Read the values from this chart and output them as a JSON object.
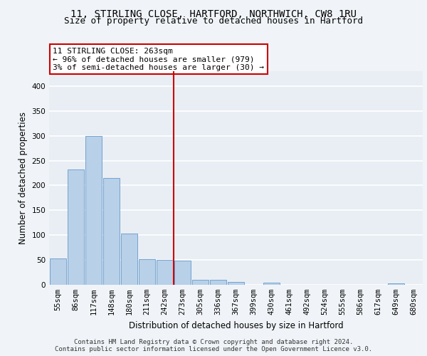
{
  "title_line1": "11, STIRLING CLOSE, HARTFORD, NORTHWICH, CW8 1RU",
  "title_line2": "Size of property relative to detached houses in Hartford",
  "xlabel": "Distribution of detached houses by size in Hartford",
  "ylabel": "Number of detached properties",
  "categories": [
    "55sqm",
    "86sqm",
    "117sqm",
    "148sqm",
    "180sqm",
    "211sqm",
    "242sqm",
    "273sqm",
    "305sqm",
    "336sqm",
    "367sqm",
    "399sqm",
    "430sqm",
    "461sqm",
    "492sqm",
    "524sqm",
    "555sqm",
    "586sqm",
    "617sqm",
    "649sqm",
    "680sqm"
  ],
  "values": [
    53,
    232,
    300,
    215,
    103,
    52,
    50,
    49,
    10,
    10,
    6,
    0,
    4,
    0,
    0,
    0,
    0,
    0,
    0,
    3,
    0
  ],
  "bar_color": "#b8d0e8",
  "bar_edge_color": "#6699cc",
  "vline_color": "#cc0000",
  "annotation_text": "11 STIRLING CLOSE: 263sqm\n← 96% of detached houses are smaller (979)\n3% of semi-detached houses are larger (30) →",
  "annotation_box_color": "#ffffff",
  "annotation_box_edge_color": "#cc0000",
  "background_color": "#e8eef4",
  "grid_color": "#ffffff",
  "footer_text": "Contains HM Land Registry data © Crown copyright and database right 2024.\nContains public sector information licensed under the Open Government Licence v3.0.",
  "ylim": [
    0,
    430
  ],
  "yticks": [
    0,
    50,
    100,
    150,
    200,
    250,
    300,
    350,
    400
  ],
  "title_fontsize": 10,
  "subtitle_fontsize": 9,
  "axis_label_fontsize": 8.5,
  "tick_fontsize": 7.5,
  "footer_fontsize": 6.5
}
